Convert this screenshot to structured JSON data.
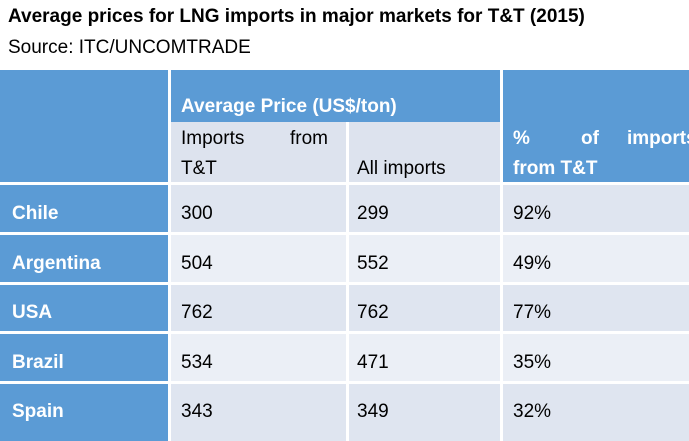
{
  "title": "Average prices for LNG imports in major markets for T&T (2015)",
  "source": "Source: ITC/UNCOMTRADE",
  "table": {
    "group_header": "Average Price (US$/ton)",
    "col_imports_tt_line1_a": "Imports",
    "col_imports_tt_line1_b": "from",
    "col_imports_tt_line2": "T&T",
    "col_all_imports": "All imports",
    "col_pct_line1_a": "%",
    "col_pct_line1_b": "of",
    "col_pct_line1_c": "imports",
    "col_pct_line2": "from T&T",
    "rows": [
      {
        "country": "Chile",
        "imports_tt": "300",
        "all_imports": "299",
        "pct": "92%"
      },
      {
        "country": "Argentina",
        "imports_tt": "504",
        "all_imports": "552",
        "pct": "49%"
      },
      {
        "country": "USA",
        "imports_tt": "762",
        "all_imports": "762",
        "pct": "77%"
      },
      {
        "country": "Brazil",
        "imports_tt": "534",
        "all_imports": "471",
        "pct": "35%"
      },
      {
        "country": "Spain",
        "imports_tt": "343",
        "all_imports": "349",
        "pct": "32%"
      }
    ]
  },
  "colors": {
    "header_blue": "#5b9bd5",
    "row_light": "#dfe5f0",
    "row_alt": "#ebeff6"
  }
}
